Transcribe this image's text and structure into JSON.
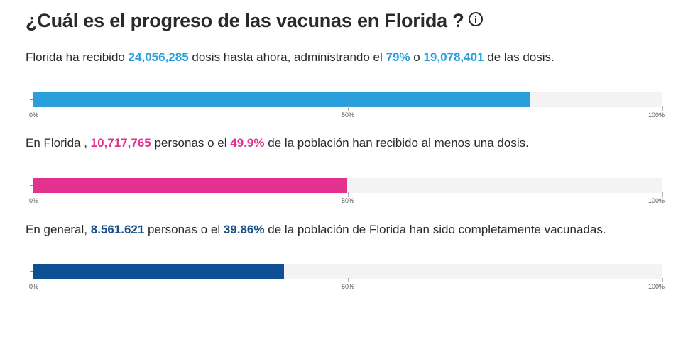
{
  "title": "¿Cuál es el progreso de las vacunas en Florida ?",
  "info_icon": "info-circle-icon",
  "sections": [
    {
      "parts": [
        {
          "text": "Florida ha recibido ",
          "style": "plain"
        },
        {
          "text": "24,056,285",
          "style": "blue"
        },
        {
          "text": " dosis hasta ahora, administrando el ",
          "style": "plain"
        },
        {
          "text": "79%",
          "style": "blue"
        },
        {
          "text": " o ",
          "style": "plain"
        },
        {
          "text": "19,078,401",
          "style": "blue"
        },
        {
          "text": " de las dosis.",
          "style": "plain"
        }
      ]
    },
    {
      "parts": [
        {
          "text": "En Florida , ",
          "style": "plain"
        },
        {
          "text": "10,717,765",
          "style": "pink"
        },
        {
          "text": " personas o el ",
          "style": "plain"
        },
        {
          "text": "49.9%",
          "style": "pink"
        },
        {
          "text": " de la población han recibido al menos una dosis.",
          "style": "plain"
        }
      ]
    },
    {
      "parts": [
        {
          "text": "En general, ",
          "style": "plain"
        },
        {
          "text": "8.561.621",
          "style": "navy"
        },
        {
          "text": " personas o el ",
          "style": "plain"
        },
        {
          "text": "39.86%",
          "style": "navy"
        },
        {
          "text": " de la población de Florida han sido completamente vacunadas.",
          "style": "plain"
        }
      ]
    }
  ],
  "chart_data": {
    "type": "bar",
    "orientation": "horizontal",
    "xlim": [
      0,
      100
    ],
    "ticks": [
      "0%",
      "50%",
      "100%"
    ],
    "series": [
      {
        "values": [
          79
        ],
        "color": "#2a9fdc"
      },
      {
        "values": [
          49.9
        ],
        "color": "#e2318f"
      },
      {
        "values": [
          39.86
        ],
        "color": "#0f4f94"
      }
    ]
  }
}
